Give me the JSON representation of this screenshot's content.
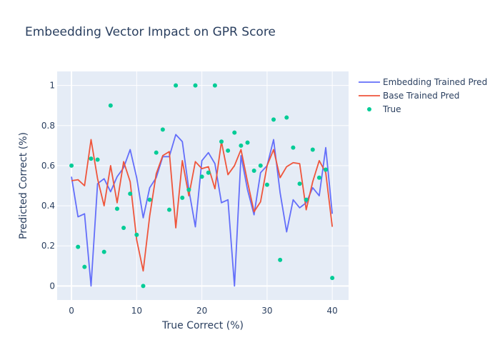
{
  "chart_data": {
    "type": "line",
    "title": "Embeedding Vector Impact on GPR Score",
    "xlabel": "True Correct (%)",
    "ylabel": "Predicted Correct (%)",
    "xlim": [
      -2.2,
      42.5
    ],
    "ylim": [
      -0.07,
      1.07
    ],
    "xticks": [
      0,
      10,
      20,
      30,
      40
    ],
    "yticks": [
      0,
      0.2,
      0.4,
      0.6,
      0.8,
      1
    ],
    "grid": true,
    "legend_position": "top-right",
    "background": "#e5ecf6",
    "x": [
      0,
      1,
      2,
      3,
      4,
      5,
      6,
      7,
      8,
      9,
      10,
      11,
      12,
      13,
      14,
      15,
      16,
      17,
      18,
      19,
      20,
      21,
      22,
      23,
      24,
      25,
      26,
      27,
      28,
      29,
      30,
      31,
      32,
      33,
      34,
      35,
      36,
      37,
      38,
      39,
      40
    ],
    "series": [
      {
        "name": "Embedding Trained Pred",
        "mode": "lines",
        "color": "#636efa",
        "values": [
          0.545,
          0.345,
          0.36,
          0.0,
          0.51,
          0.535,
          0.47,
          0.545,
          0.59,
          0.68,
          0.54,
          0.34,
          0.49,
          0.54,
          0.645,
          0.645,
          0.755,
          0.72,
          0.48,
          0.295,
          0.625,
          0.665,
          0.61,
          0.415,
          0.43,
          0.0,
          0.65,
          0.48,
          0.355,
          0.565,
          0.6,
          0.73,
          0.465,
          0.27,
          0.43,
          0.39,
          0.415,
          0.49,
          0.45,
          0.69,
          0.36
        ]
      },
      {
        "name": "Base Trained Pred",
        "mode": "lines",
        "color": "#ef553b",
        "values": [
          0.525,
          0.53,
          0.5,
          0.73,
          0.535,
          0.4,
          0.6,
          0.415,
          0.62,
          0.52,
          0.23,
          0.075,
          0.35,
          0.56,
          0.65,
          0.67,
          0.29,
          0.625,
          0.45,
          0.62,
          0.585,
          0.595,
          0.485,
          0.72,
          0.555,
          0.6,
          0.68,
          0.52,
          0.37,
          0.42,
          0.6,
          0.68,
          0.54,
          0.595,
          0.615,
          0.61,
          0.38,
          0.52,
          0.625,
          0.565,
          0.295
        ]
      },
      {
        "name": "True",
        "mode": "markers",
        "color": "#00cc96",
        "values": [
          0.6,
          0.195,
          0.095,
          0.635,
          0.63,
          0.17,
          0.9,
          0.385,
          0.29,
          0.46,
          0.255,
          0.0,
          0.43,
          0.665,
          0.78,
          0.38,
          1.0,
          0.44,
          0.48,
          1.0,
          0.545,
          0.565,
          1.0,
          0.72,
          0.675,
          0.765,
          0.7,
          0.715,
          0.575,
          0.6,
          0.505,
          0.83,
          0.13,
          0.84,
          0.69,
          0.51,
          0.43,
          0.68,
          0.54,
          0.58,
          0.04
        ]
      }
    ]
  }
}
